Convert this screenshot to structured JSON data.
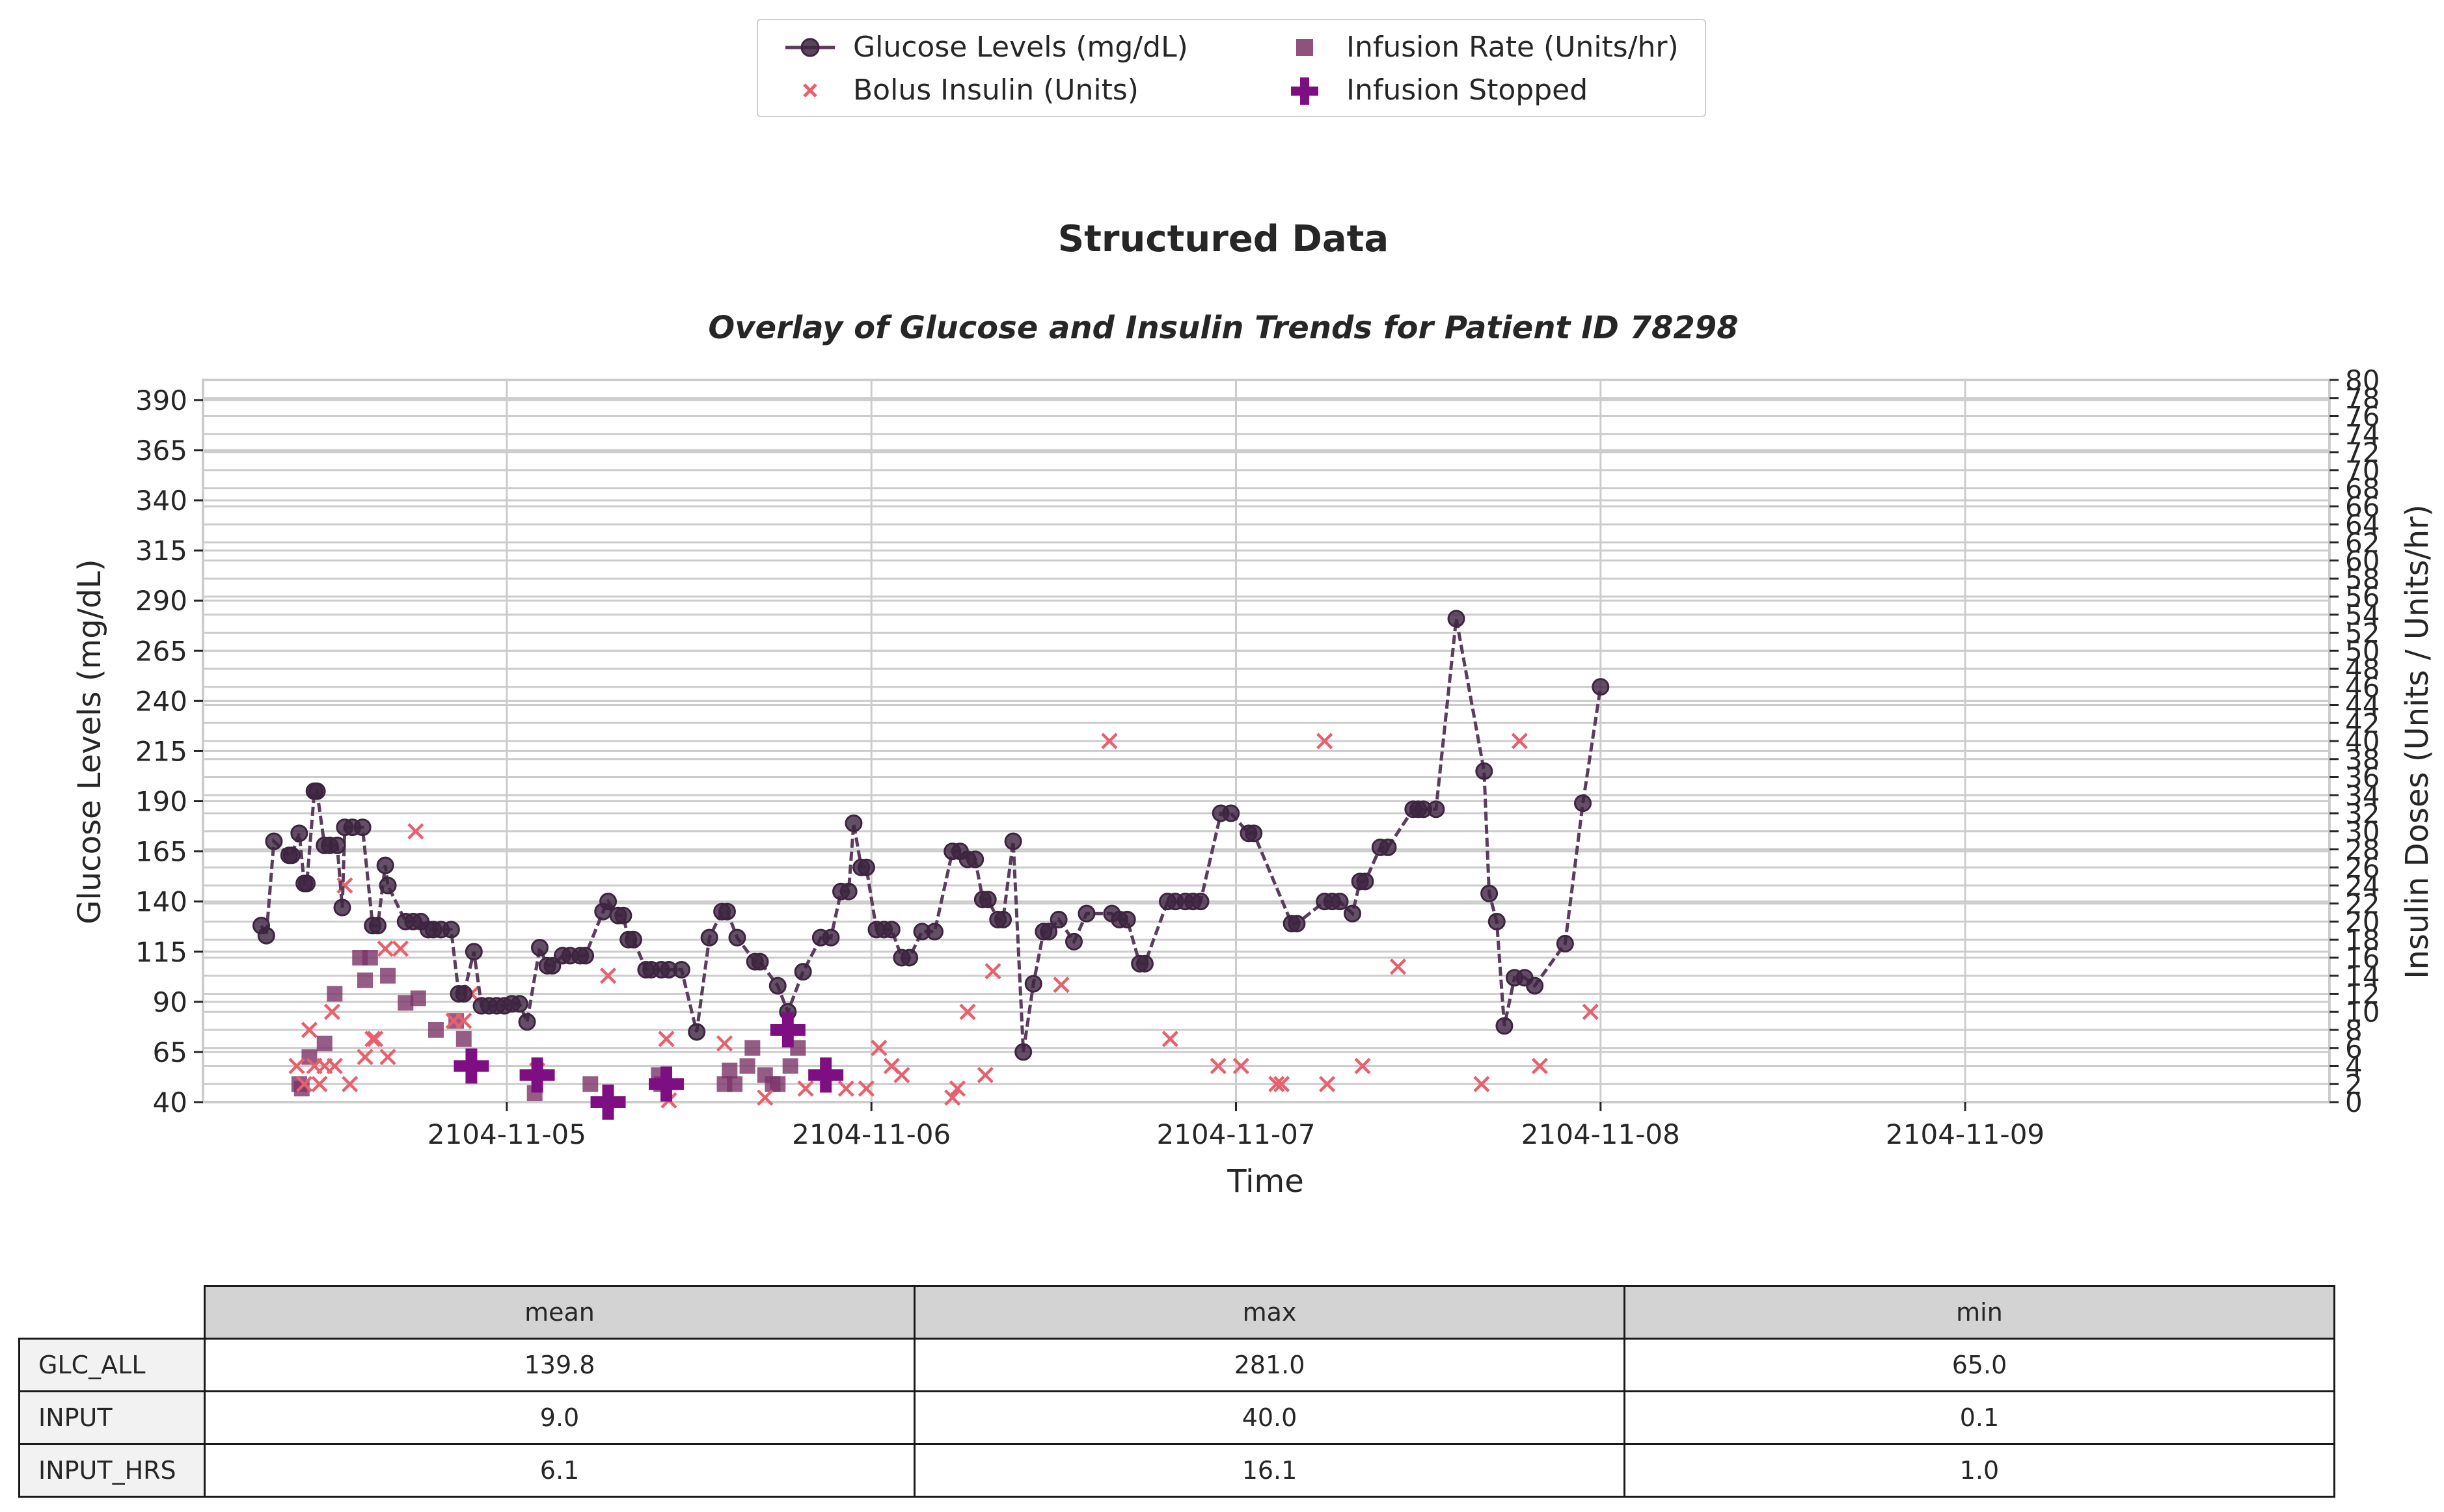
{
  "title": "Structured Data",
  "subtitle": "Overlay of Glucose and Insulin Trends for Patient ID 78298",
  "colors": {
    "glucose_line": "#5a3d5c",
    "glucose_marker": "#3d2440",
    "bolus": "#e8606e",
    "infusion_rate": "#7a3466",
    "infusion_stopped": "#7d0f82",
    "grid": "#cccccc"
  },
  "legend": {
    "glucose": "Glucose Levels (mg/dL)",
    "bolus": "Bolus Insulin (Units)",
    "rate": "Infusion Rate (Units/hr)",
    "stopped": "Infusion Stopped"
  },
  "chart_data": {
    "type": "line",
    "title": "Structured Data",
    "subtitle": "Overlay of Glucose and Insulin Trends for Patient ID 78298",
    "xlabel": "Time",
    "ylabel": "Glucose Levels (mg/dL)",
    "y2label": "Insulin Doses (Units / Units/hr)",
    "xlim": [
      "2104-11-04 04:00",
      "2104-11-09 23:59"
    ],
    "ylim": [
      40,
      400
    ],
    "y2lim": [
      0,
      80
    ],
    "x_ticks": [
      "2104-11-05",
      "2104-11-06",
      "2104-11-07",
      "2104-11-08",
      "2104-11-09"
    ],
    "y_ticks": [
      40,
      65,
      90,
      115,
      140,
      165,
      190,
      215,
      240,
      265,
      290,
      315,
      340,
      365,
      390
    ],
    "y2_ticks": [
      0,
      2,
      4,
      6,
      8,
      10,
      12,
      14,
      16,
      18,
      20,
      22,
      24,
      26,
      28,
      30,
      32,
      34,
      36,
      38,
      40,
      42,
      44,
      46,
      48,
      50,
      52,
      54,
      56,
      58,
      60,
      62,
      64,
      66,
      68,
      70,
      72,
      74,
      76,
      78,
      80
    ],
    "grid": true,
    "legend_position": "top-center",
    "series": [
      {
        "name": "Glucose Levels (mg/dL)",
        "kind": "line-markers",
        "axis": "left",
        "points": [
          [
            "2104-11-04 07:50",
            128
          ],
          [
            "2104-11-04 08:10",
            123
          ],
          [
            "2104-11-04 08:40",
            170
          ],
          [
            "2104-11-04 09:40",
            163
          ],
          [
            "2104-11-04 09:50",
            163
          ],
          [
            "2104-11-04 10:20",
            174
          ],
          [
            "2104-11-04 10:40",
            149
          ],
          [
            "2104-11-04 10:50",
            149
          ],
          [
            "2104-11-04 11:20",
            195
          ],
          [
            "2104-11-04 11:30",
            195
          ],
          [
            "2104-11-04 12:00",
            168
          ],
          [
            "2104-11-04 12:20",
            168
          ],
          [
            "2104-11-04 12:50",
            168
          ],
          [
            "2104-11-04 13:10",
            137
          ],
          [
            "2104-11-04 13:20",
            177
          ],
          [
            "2104-11-04 13:50",
            177
          ],
          [
            "2104-11-04 14:30",
            177
          ],
          [
            "2104-11-04 15:10",
            128
          ],
          [
            "2104-11-04 15:30",
            128
          ],
          [
            "2104-11-04 16:00",
            158
          ],
          [
            "2104-11-04 16:10",
            148
          ],
          [
            "2104-11-04 17:20",
            130
          ],
          [
            "2104-11-04 17:50",
            130
          ],
          [
            "2104-11-04 18:20",
            130
          ],
          [
            "2104-11-04 18:50",
            126
          ],
          [
            "2104-11-04 19:10",
            126
          ],
          [
            "2104-11-04 19:40",
            126
          ],
          [
            "2104-11-04 20:20",
            126
          ],
          [
            "2104-11-04 20:50",
            94
          ],
          [
            "2104-11-04 21:10",
            94
          ],
          [
            "2104-11-04 21:50",
            115
          ],
          [
            "2104-11-04 22:20",
            88
          ],
          [
            "2104-11-04 22:50",
            88
          ],
          [
            "2104-11-04 23:20",
            88
          ],
          [
            "2104-11-04 23:50",
            88
          ],
          [
            "2104-11-05 00:20",
            89
          ],
          [
            "2104-11-05 00:50",
            89
          ],
          [
            "2104-11-05 01:20",
            80
          ],
          [
            "2104-11-05 02:10",
            117
          ],
          [
            "2104-11-05 02:40",
            108
          ],
          [
            "2104-11-05 03:00",
            108
          ],
          [
            "2104-11-05 03:40",
            113
          ],
          [
            "2104-11-05 04:10",
            113
          ],
          [
            "2104-11-05 04:50",
            113
          ],
          [
            "2104-11-05 05:10",
            113
          ],
          [
            "2104-11-05 06:20",
            135
          ],
          [
            "2104-11-05 06:40",
            140
          ],
          [
            "2104-11-05 07:20",
            133
          ],
          [
            "2104-11-05 07:40",
            133
          ],
          [
            "2104-11-05 08:00",
            121
          ],
          [
            "2104-11-05 08:20",
            121
          ],
          [
            "2104-11-05 09:10",
            106
          ],
          [
            "2104-11-05 09:30",
            106
          ],
          [
            "2104-11-05 10:10",
            106
          ],
          [
            "2104-11-05 10:40",
            106
          ],
          [
            "2104-11-05 11:30",
            106
          ],
          [
            "2104-11-05 12:30",
            75
          ],
          [
            "2104-11-05 13:20",
            122
          ],
          [
            "2104-11-05 14:10",
            135
          ],
          [
            "2104-11-05 14:30",
            135
          ],
          [
            "2104-11-05 15:10",
            122
          ],
          [
            "2104-11-05 16:20",
            110
          ],
          [
            "2104-11-05 16:40",
            110
          ],
          [
            "2104-11-05 17:50",
            98
          ],
          [
            "2104-11-05 18:30",
            85
          ],
          [
            "2104-11-05 19:30",
            105
          ],
          [
            "2104-11-05 20:40",
            122
          ],
          [
            "2104-11-05 21:20",
            122
          ],
          [
            "2104-11-05 22:00",
            145
          ],
          [
            "2104-11-05 22:30",
            145
          ],
          [
            "2104-11-05 22:50",
            179
          ],
          [
            "2104-11-05 23:20",
            157
          ],
          [
            "2104-11-05 23:40",
            157
          ],
          [
            "2104-11-06 00:20",
            126
          ],
          [
            "2104-11-06 00:50",
            126
          ],
          [
            "2104-11-06 01:20",
            126
          ],
          [
            "2104-11-06 02:00",
            112
          ],
          [
            "2104-11-06 02:30",
            112
          ],
          [
            "2104-11-06 03:20",
            125
          ],
          [
            "2104-11-06 04:10",
            125
          ],
          [
            "2104-11-06 05:20",
            165
          ],
          [
            "2104-11-06 05:50",
            165
          ],
          [
            "2104-11-06 06:20",
            161
          ],
          [
            "2104-11-06 06:50",
            161
          ],
          [
            "2104-11-06 07:20",
            141
          ],
          [
            "2104-11-06 07:40",
            141
          ],
          [
            "2104-11-06 08:20",
            131
          ],
          [
            "2104-11-06 08:40",
            131
          ],
          [
            "2104-11-06 09:20",
            170
          ],
          [
            "2104-11-06 10:00",
            65
          ],
          [
            "2104-11-06 10:40",
            99
          ],
          [
            "2104-11-06 11:20",
            125
          ],
          [
            "2104-11-06 11:40",
            125
          ],
          [
            "2104-11-06 12:20",
            131
          ],
          [
            "2104-11-06 13:20",
            120
          ],
          [
            "2104-11-06 14:10",
            134
          ],
          [
            "2104-11-06 15:50",
            134
          ],
          [
            "2104-11-06 16:20",
            131
          ],
          [
            "2104-11-06 16:50",
            131
          ],
          [
            "2104-11-06 17:40",
            109
          ],
          [
            "2104-11-06 18:00",
            109
          ],
          [
            "2104-11-06 19:30",
            140
          ],
          [
            "2104-11-06 20:00",
            140
          ],
          [
            "2104-11-06 20:40",
            140
          ],
          [
            "2104-11-06 21:10",
            140
          ],
          [
            "2104-11-06 21:40",
            140
          ],
          [
            "2104-11-06 23:00",
            184
          ],
          [
            "2104-11-06 23:40",
            184
          ],
          [
            "2104-11-07 00:50",
            174
          ],
          [
            "2104-11-07 01:10",
            174
          ],
          [
            "2104-11-07 03:40",
            129
          ],
          [
            "2104-11-07 04:00",
            129
          ],
          [
            "2104-11-07 05:50",
            140
          ],
          [
            "2104-11-07 06:20",
            140
          ],
          [
            "2104-11-07 06:50",
            140
          ],
          [
            "2104-11-07 07:40",
            134
          ],
          [
            "2104-11-07 08:10",
            150
          ],
          [
            "2104-11-07 08:30",
            150
          ],
          [
            "2104-11-07 09:30",
            167
          ],
          [
            "2104-11-07 10:00",
            167
          ],
          [
            "2104-11-07 11:40",
            186
          ],
          [
            "2104-11-07 12:00",
            186
          ],
          [
            "2104-11-07 12:20",
            186
          ],
          [
            "2104-11-07 13:10",
            186
          ],
          [
            "2104-11-07 14:30",
            281
          ],
          [
            "2104-11-07 16:20",
            205
          ],
          [
            "2104-11-07 16:40",
            144
          ],
          [
            "2104-11-07 17:10",
            130
          ],
          [
            "2104-11-07 17:40",
            78
          ],
          [
            "2104-11-07 18:20",
            102
          ],
          [
            "2104-11-07 19:00",
            102
          ],
          [
            "2104-11-07 19:40",
            98
          ],
          [
            "2104-11-07 21:40",
            119
          ],
          [
            "2104-11-07 22:50",
            189
          ],
          [
            "2104-11-08 00:00",
            247
          ]
        ]
      },
      {
        "name": "Bolus Insulin (Units)",
        "kind": "scatter-x",
        "axis": "right",
        "points": [
          [
            "2104-11-04 10:10",
            4
          ],
          [
            "2104-11-04 10:40",
            2
          ],
          [
            "2104-11-04 11:00",
            8
          ],
          [
            "2104-11-04 11:20",
            4
          ],
          [
            "2104-11-04 11:40",
            2
          ],
          [
            "2104-11-04 12:00",
            4
          ],
          [
            "2104-11-04 12:30",
            10
          ],
          [
            "2104-11-04 12:40",
            4
          ],
          [
            "2104-11-04 13:20",
            24
          ],
          [
            "2104-11-04 13:40",
            2
          ],
          [
            "2104-11-04 14:40",
            5
          ],
          [
            "2104-11-04 15:10",
            7
          ],
          [
            "2104-11-04 15:20",
            7
          ],
          [
            "2104-11-04 16:00",
            17
          ],
          [
            "2104-11-04 16:10",
            5
          ],
          [
            "2104-11-04 17:00",
            17
          ],
          [
            "2104-11-04 18:00",
            30
          ],
          [
            "2104-11-04 20:30",
            9
          ],
          [
            "2104-11-04 21:10",
            9
          ],
          [
            "2104-11-04 21:40",
            12
          ],
          [
            "2104-11-05 02:00",
            3.5
          ],
          [
            "2104-11-05 06:40",
            14
          ],
          [
            "2104-11-05 10:30",
            7
          ],
          [
            "2104-11-05 10:40",
            0.2
          ],
          [
            "2104-11-05 14:20",
            6.5
          ],
          [
            "2104-11-05 17:00",
            0.5
          ],
          [
            "2104-11-05 19:40",
            1.5
          ],
          [
            "2104-11-05 22:20",
            1.5
          ],
          [
            "2104-11-05 23:40",
            1.5
          ],
          [
            "2104-11-06 00:30",
            6
          ],
          [
            "2104-11-06 01:20",
            4
          ],
          [
            "2104-11-06 02:00",
            3
          ],
          [
            "2104-11-06 05:20",
            0.5
          ],
          [
            "2104-11-06 05:40",
            1.5
          ],
          [
            "2104-11-06 06:20",
            10
          ],
          [
            "2104-11-06 07:30",
            3
          ],
          [
            "2104-11-06 08:00",
            14.5
          ],
          [
            "2104-11-06 12:30",
            13
          ],
          [
            "2104-11-06 15:40",
            40
          ],
          [
            "2104-11-06 19:40",
            7
          ],
          [
            "2104-11-06 22:50",
            4
          ],
          [
            "2104-11-07 00:20",
            4
          ],
          [
            "2104-11-07 02:40",
            2
          ],
          [
            "2104-11-07 03:00",
            2
          ],
          [
            "2104-11-07 05:50",
            40
          ],
          [
            "2104-11-07 06:00",
            2
          ],
          [
            "2104-11-07 08:20",
            4
          ],
          [
            "2104-11-07 10:40",
            15
          ],
          [
            "2104-11-07 16:10",
            2
          ],
          [
            "2104-11-07 18:40",
            40
          ],
          [
            "2104-11-07 20:00",
            4
          ],
          [
            "2104-11-07 23:20",
            10
          ]
        ]
      },
      {
        "name": "Infusion Rate (Units/hr)",
        "kind": "scatter-square",
        "axis": "right",
        "points": [
          [
            "2104-11-04 10:20",
            2
          ],
          [
            "2104-11-04 10:30",
            1.5
          ],
          [
            "2104-11-04 11:00",
            5
          ],
          [
            "2104-11-04 12:00",
            6.5
          ],
          [
            "2104-11-04 12:40",
            12
          ],
          [
            "2104-11-04 14:20",
            16
          ],
          [
            "2104-11-04 14:40",
            13.5
          ],
          [
            "2104-11-04 15:00",
            16
          ],
          [
            "2104-11-04 16:10",
            14
          ],
          [
            "2104-11-04 17:20",
            11
          ],
          [
            "2104-11-04 18:10",
            11.5
          ],
          [
            "2104-11-04 19:20",
            8
          ],
          [
            "2104-11-04 20:40",
            9
          ],
          [
            "2104-11-04 21:10",
            7
          ],
          [
            "2104-11-05 01:50",
            1
          ],
          [
            "2104-11-05 05:30",
            2
          ],
          [
            "2104-11-05 10:00",
            3
          ],
          [
            "2104-11-05 10:10",
            2
          ],
          [
            "2104-11-05 14:20",
            2
          ],
          [
            "2104-11-05 14:40",
            3.5
          ],
          [
            "2104-11-05 15:00",
            2
          ],
          [
            "2104-11-05 15:50",
            4
          ],
          [
            "2104-11-05 16:10",
            6
          ],
          [
            "2104-11-05 17:00",
            3
          ],
          [
            "2104-11-05 17:30",
            2
          ],
          [
            "2104-11-05 17:50",
            2
          ],
          [
            "2104-11-05 18:40",
            4
          ],
          [
            "2104-11-05 19:10",
            6
          ]
        ]
      },
      {
        "name": "Infusion Stopped",
        "kind": "scatter-plus",
        "axis": "right",
        "points": [
          [
            "2104-11-04 21:40",
            4
          ],
          [
            "2104-11-05 02:00",
            3
          ],
          [
            "2104-11-05 06:40",
            0
          ],
          [
            "2104-11-05 10:30",
            2
          ],
          [
            "2104-11-05 18:30",
            8
          ],
          [
            "2104-11-05 21:00",
            3
          ]
        ]
      }
    ]
  },
  "table": {
    "columns": [
      "mean",
      "max",
      "min"
    ],
    "rows": [
      {
        "label": "GLC_ALL",
        "values": [
          "139.8",
          "281.0",
          "65.0"
        ]
      },
      {
        "label": "INPUT",
        "values": [
          "9.0",
          "40.0",
          "0.1"
        ]
      },
      {
        "label": "INPUT_HRS",
        "values": [
          "6.1",
          "16.1",
          "1.0"
        ]
      }
    ]
  }
}
